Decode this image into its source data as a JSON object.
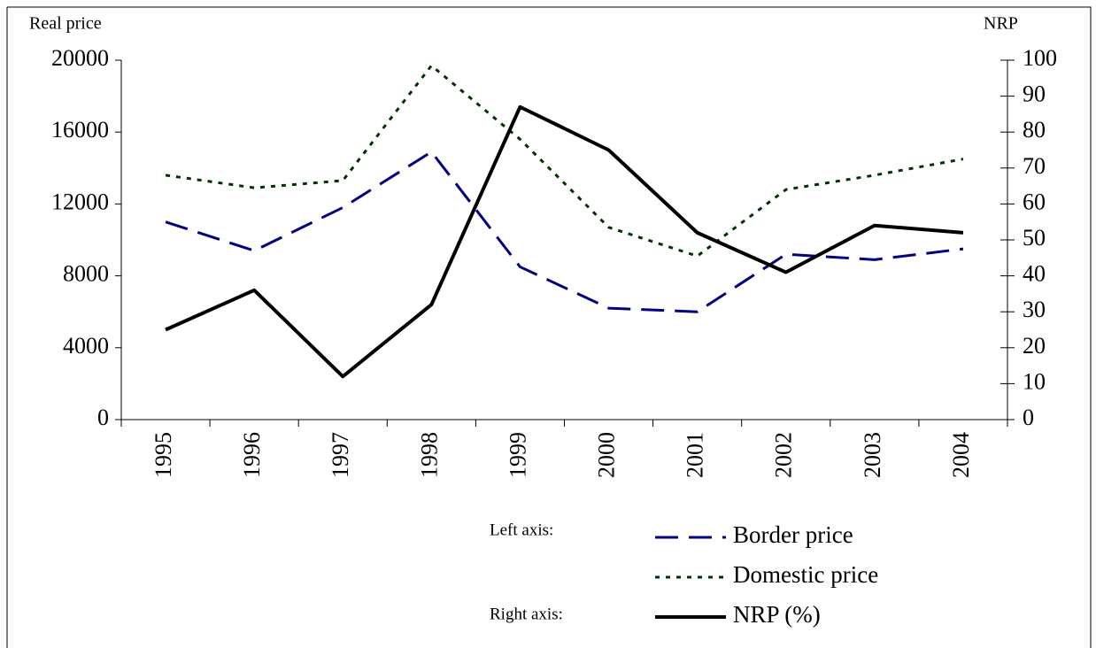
{
  "chart_data": {
    "type": "line",
    "ylabel": "Real price",
    "y2label": "NRP",
    "categories": [
      "1995",
      "1996",
      "1997",
      "1998",
      "1999",
      "2000",
      "2001",
      "2002",
      "2003",
      "2004"
    ],
    "series": [
      {
        "name": "Border price",
        "color": "#000080",
        "style": "dashed",
        "axis": "y",
        "values": [
          11000,
          9400,
          11800,
          14900,
          8500,
          6200,
          6000,
          9200,
          8900,
          9500
        ]
      },
      {
        "name": "Domestic price",
        "color": "#003300",
        "style": "dotted",
        "axis": "y",
        "values": [
          13600,
          12900,
          13300,
          19700,
          15600,
          10700,
          9100,
          12800,
          13600,
          14500
        ]
      },
      {
        "name": "NRP (%)",
        "color": "#000000",
        "style": "solid",
        "axis": "y2",
        "values": [
          25,
          36,
          12,
          32,
          87,
          75,
          52,
          41,
          54,
          52
        ]
      }
    ],
    "legend_groups": [
      "Left axis:",
      "Right axis:"
    ],
    "ylim": [
      0,
      20000
    ],
    "yticks": [
      0,
      4000,
      8000,
      12000,
      16000,
      20000
    ],
    "y2lim": [
      0,
      100
    ],
    "y2ticks": [
      0,
      10,
      20,
      30,
      40,
      50,
      60,
      70,
      80,
      90,
      100
    ],
    "grid": false
  }
}
